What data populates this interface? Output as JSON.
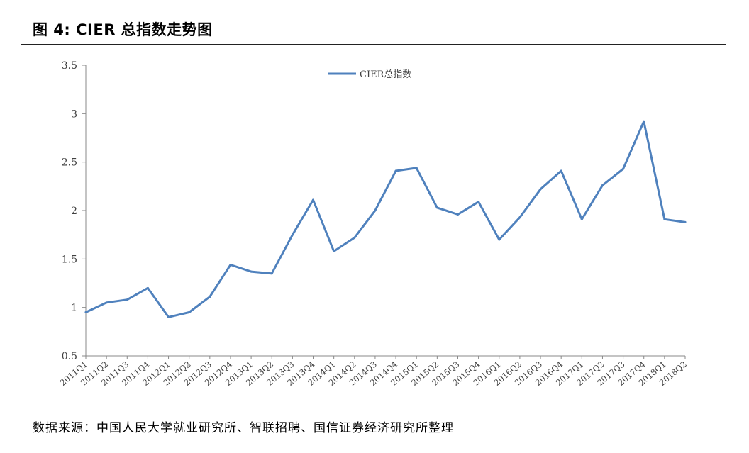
{
  "header": {
    "title": "图 4:  CIER 总指数走势图"
  },
  "footer": {
    "source": "数据来源：中国人民大学就业研究所、智联招聘、国信证券经济研究所整理"
  },
  "chart_data": {
    "type": "line",
    "title": "",
    "xlabel": "",
    "ylabel": "",
    "ylim": [
      0.5,
      3.5
    ],
    "yticks": [
      "0.5",
      "1",
      "1.5",
      "2",
      "2.5",
      "3",
      "3.5"
    ],
    "grid": false,
    "legend_position": "top-center",
    "categories": [
      "2011Q1",
      "2011Q2",
      "2011Q3",
      "2011Q4",
      "2012Q1",
      "2012Q2",
      "2012Q3",
      "2012Q4",
      "2013Q1",
      "2013Q2",
      "2013Q3",
      "2013Q4",
      "2014Q1",
      "2014Q2",
      "2014Q3",
      "2014Q4",
      "2015Q1",
      "2015Q2",
      "2015Q3",
      "2015Q4",
      "2016Q1",
      "2016Q2",
      "2016Q3",
      "2016Q4",
      "2017Q1",
      "2017Q2",
      "2017Q3",
      "2017Q4",
      "2018Q1",
      "2018Q2"
    ],
    "series": [
      {
        "name": "CIER总指数",
        "color": "#4F81BD",
        "values": [
          0.95,
          1.05,
          1.08,
          1.2,
          0.9,
          0.95,
          1.11,
          1.44,
          1.37,
          1.35,
          1.75,
          2.11,
          1.58,
          1.72,
          2.0,
          2.41,
          2.44,
          2.03,
          1.96,
          2.09,
          1.7,
          1.93,
          2.22,
          2.41,
          1.91,
          2.26,
          2.43,
          2.92,
          1.91,
          1.88
        ]
      }
    ]
  }
}
